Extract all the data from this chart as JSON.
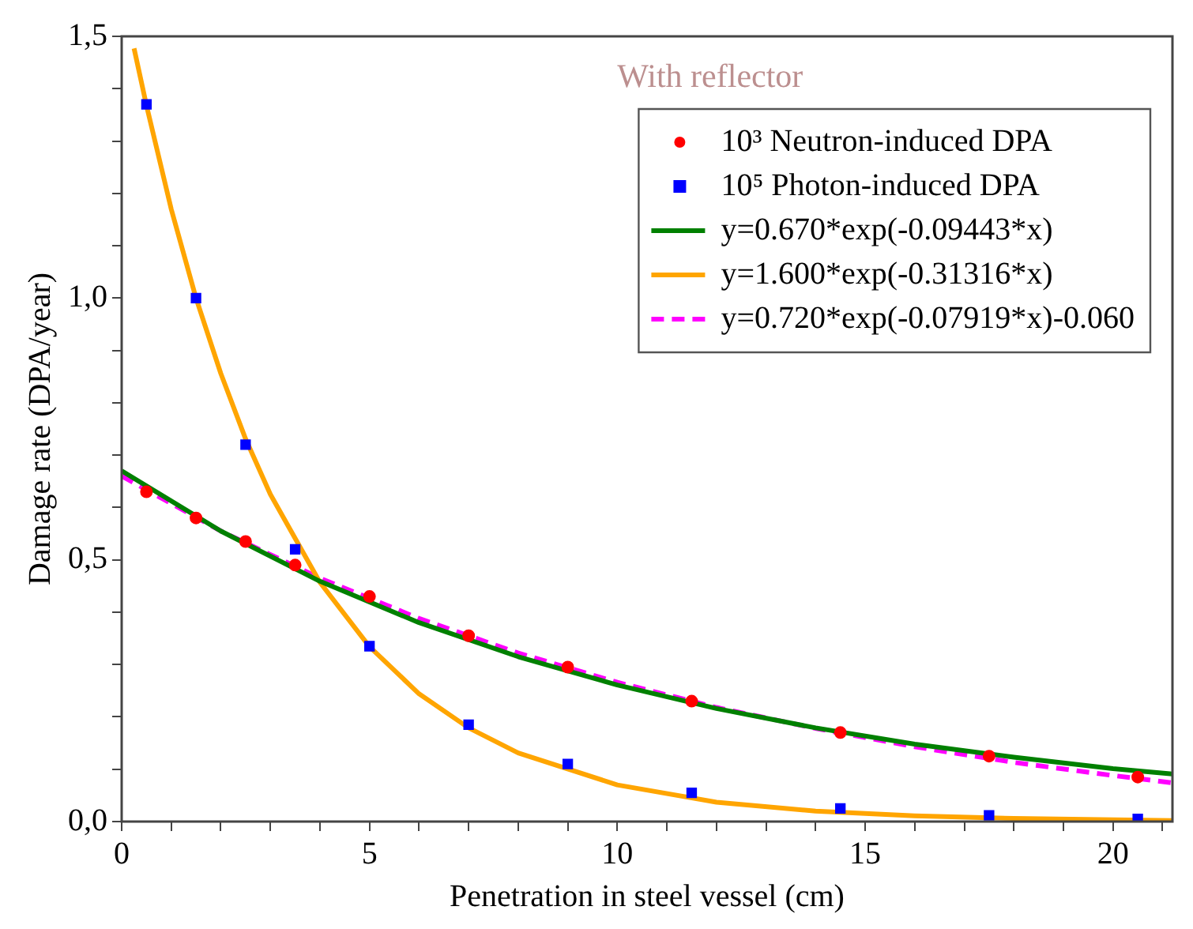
{
  "chart_data": {
    "type": "scatter",
    "xlabel": "Penetration in steel vessel (cm)",
    "ylabel": "Damage rate (DPA/year)",
    "annotations": [
      "With reflector"
    ],
    "x": [
      0.5,
      1.5,
      2.5,
      3.5,
      5,
      7,
      9,
      11.5,
      14.5,
      17.5,
      20.5
    ],
    "xlim": [
      0,
      21.2
    ],
    "ylim": [
      0,
      1.5
    ],
    "xticks": [
      0,
      {
        "value": 1,
        "label": null
      },
      {
        "value": 2,
        "label": null
      },
      {
        "value": 3,
        "label": null
      },
      {
        "value": 4,
        "label": null
      },
      5,
      {
        "value": 6,
        "label": null
      },
      {
        "value": 7,
        "label": null
      },
      {
        "value": 8,
        "label": null
      },
      {
        "value": 9,
        "label": null
      },
      10,
      {
        "value": 11,
        "label": null
      },
      {
        "value": 12,
        "label": null
      },
      {
        "value": 13,
        "label": null
      },
      {
        "value": 14,
        "label": null
      },
      15,
      {
        "value": 16,
        "label": null
      },
      {
        "value": 17,
        "label": null
      },
      {
        "value": 18,
        "label": null
      },
      {
        "value": 19,
        "label": null
      },
      20,
      {
        "value": 21,
        "label": null
      }
    ],
    "yticks": [
      {
        "value": 0,
        "label": "0,0"
      },
      {
        "value": 0.1,
        "label": null
      },
      {
        "value": 0.2,
        "label": null
      },
      {
        "value": 0.3,
        "label": null
      },
      {
        "value": 0.4,
        "label": null
      },
      {
        "value": 0.5,
        "label": "0,5"
      },
      {
        "value": 0.6,
        "label": null
      },
      {
        "value": 0.7,
        "label": null
      },
      {
        "value": 0.8,
        "label": null
      },
      {
        "value": 0.9,
        "label": null
      },
      {
        "value": 1,
        "label": "1,0"
      },
      {
        "value": 1.1,
        "label": null
      },
      {
        "value": 1.2,
        "label": null
      },
      {
        "value": 1.3,
        "label": null
      },
      {
        "value": 1.4,
        "label": null
      },
      {
        "value": 1.5,
        "label": "1,5"
      }
    ],
    "grid": false,
    "legend": "top right",
    "series": [
      {
        "name": "10³ Neutron-induced DPA",
        "type": "scatter",
        "marker": "circle",
        "color": "#ff0000",
        "values": [
          0.63,
          0.58,
          0.535,
          0.49,
          0.43,
          0.355,
          0.295,
          0.23,
          0.17,
          0.125,
          0.085
        ]
      },
      {
        "name": "10⁵ Photon-induced DPA",
        "type": "scatter",
        "marker": "square",
        "color": "#0000ff",
        "values": [
          1.37,
          1.0,
          0.72,
          0.52,
          0.335,
          0.185,
          0.11,
          0.055,
          0.025,
          0.012,
          0.005
        ]
      },
      {
        "name": "y=0.670*exp(-0.09443*x)",
        "type": "line",
        "marker": "none",
        "line_style": "solid",
        "color": "#008000",
        "x": [
          0,
          2,
          4,
          6,
          8,
          10,
          12,
          14,
          16,
          18,
          20,
          21.2
        ],
        "values": [
          0.67,
          0.555,
          0.459,
          0.38,
          0.315,
          0.261,
          0.216,
          0.179,
          0.148,
          0.123,
          0.101,
          0.091
        ]
      },
      {
        "name": "y=1.600*exp(-0.31316*x)",
        "type": "line",
        "marker": "none",
        "line_style": "solid",
        "color": "#ffa500",
        "x": [
          0.25,
          0.5,
          1,
          1.5,
          2,
          2.5,
          3,
          4,
          5,
          6,
          7,
          8,
          10,
          12,
          14,
          16,
          18,
          21.2
        ],
        "values": [
          1.477,
          1.368,
          1.17,
          1.0,
          0.856,
          0.731,
          0.625,
          0.457,
          0.334,
          0.244,
          0.179,
          0.131,
          0.07,
          0.037,
          0.02,
          0.011,
          0.006,
          0.002
        ]
      },
      {
        "name": "y=0.720*exp(-0.07919*x)-0.060",
        "type": "line",
        "marker": "none",
        "line_style": "dashed",
        "color": "#ff00ff",
        "x": [
          0,
          2,
          4,
          6,
          8,
          10,
          12,
          14,
          16,
          18,
          20,
          21.2
        ],
        "values": [
          0.66,
          0.555,
          0.465,
          0.388,
          0.322,
          0.266,
          0.218,
          0.178,
          0.143,
          0.113,
          0.088,
          0.074
        ]
      }
    ]
  }
}
